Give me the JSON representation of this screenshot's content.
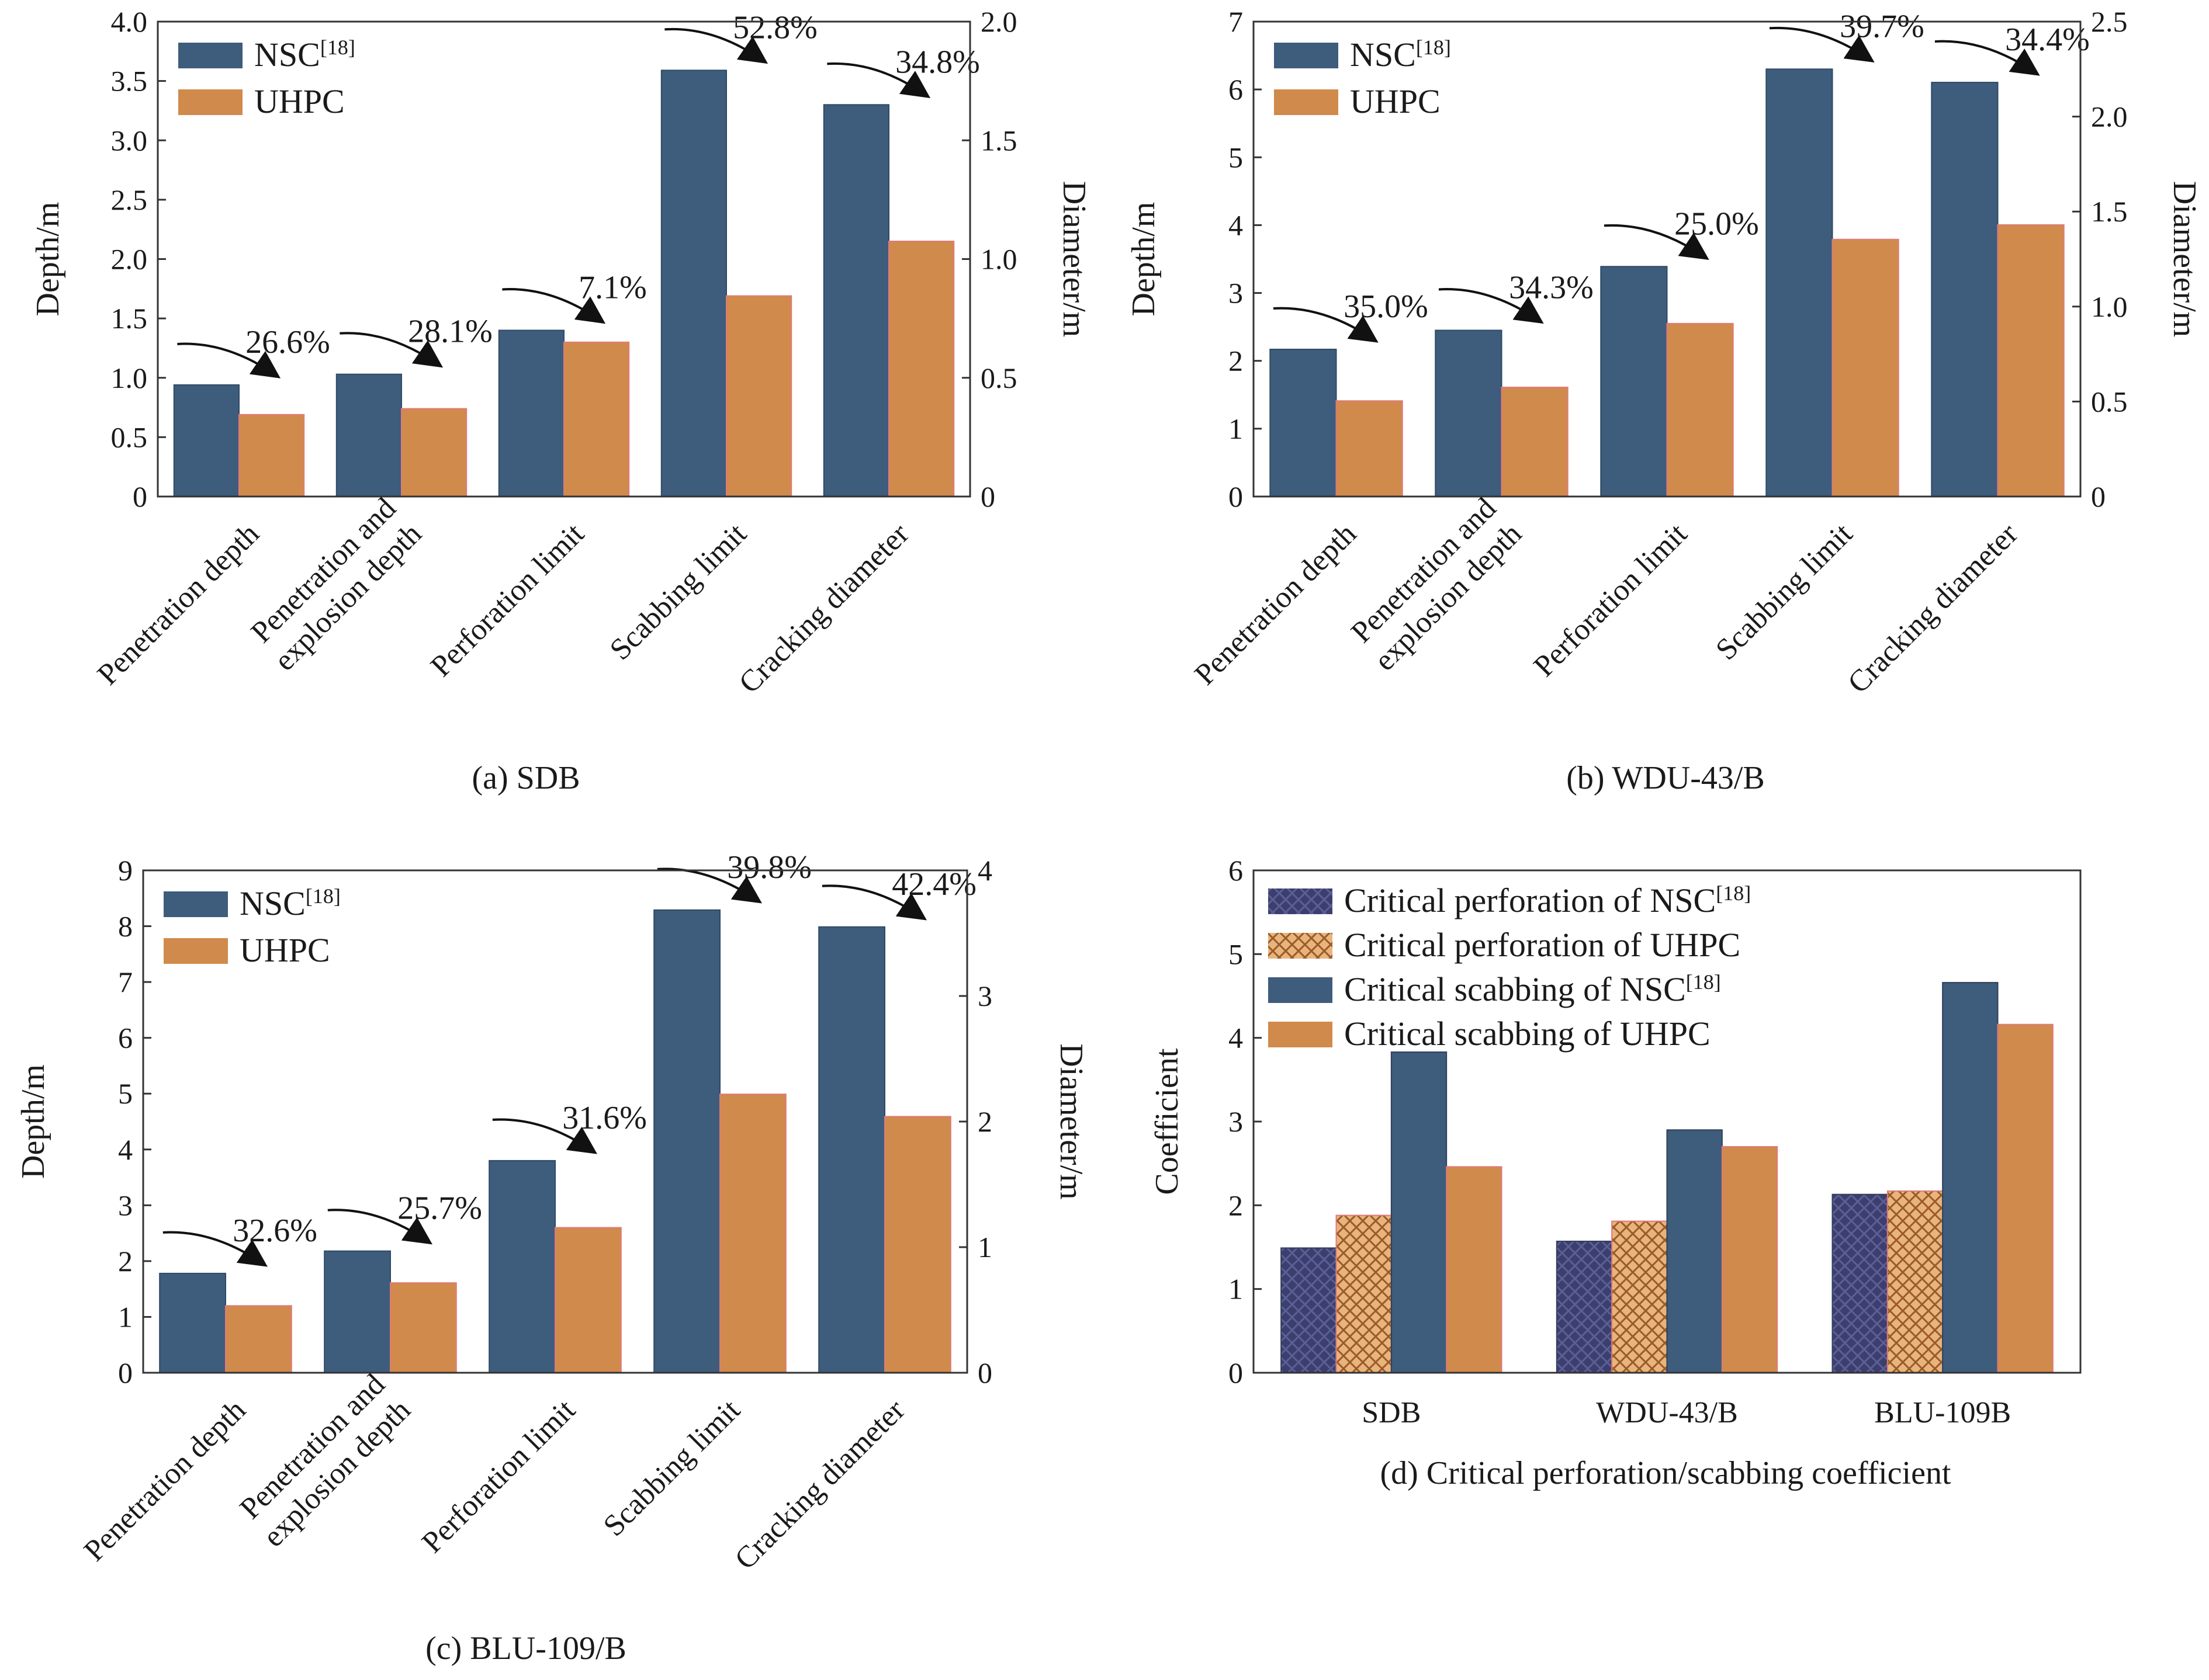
{
  "chart_data": [
    {
      "id": "a",
      "type": "bar",
      "caption": "(a) SDB",
      "categories": [
        "Penetration depth",
        "Penetration and explosion depth",
        "Perforation limit",
        "Scabbing limit",
        "Cracking diameter"
      ],
      "category_lines": [
        [
          "Penetration depth"
        ],
        [
          "Penetration and",
          "explosion depth"
        ],
        [
          "Perforation limit"
        ],
        [
          "Scabbing limit"
        ],
        [
          "Cracking diameter"
        ]
      ],
      "series": [
        {
          "name": "NSC",
          "name_sup": "[18]",
          "color": "#3e5c7c",
          "values": [
            0.94,
            1.03,
            1.4,
            3.59,
            1.65
          ],
          "axis": [
            "left",
            "left",
            "left",
            "left",
            "right"
          ]
        },
        {
          "name": "UHPC",
          "color": "#d08a4c",
          "values": [
            0.69,
            0.74,
            1.3,
            1.69,
            1.075
          ],
          "axis": [
            "left",
            "left",
            "left",
            "left",
            "right"
          ]
        }
      ],
      "annotations": [
        "26.6%",
        "28.1%",
        "7.1%",
        "52.8%",
        "34.8%"
      ],
      "ylabel": "Depth/m",
      "y2label": "Diameter/m",
      "ylim": [
        0,
        4.0
      ],
      "y2lim": [
        0,
        2.0
      ],
      "yticks": [
        "0",
        "0.5",
        "1.0",
        "1.5",
        "2.0",
        "2.5",
        "3.0",
        "3.5",
        "4.0"
      ],
      "y2ticks": [
        "0",
        "0.5",
        "1.0",
        "1.5",
        "2.0"
      ],
      "legend_position": "top-left"
    },
    {
      "id": "b",
      "type": "bar",
      "caption": "(b) WDU-43/B",
      "categories": [
        "Penetration depth",
        "Penetration and explosion depth",
        "Perforation limit",
        "Scabbing limit",
        "Cracking diameter"
      ],
      "category_lines": [
        [
          "Penetration depth"
        ],
        [
          "Penetration and",
          "explosion depth"
        ],
        [
          "Perforation limit"
        ],
        [
          "Scabbing limit"
        ],
        [
          "Cracking diameter"
        ]
      ],
      "series": [
        {
          "name": "NSC",
          "name_sup": "[18]",
          "color": "#3e5c7c",
          "values": [
            2.17,
            2.45,
            3.39,
            6.3,
            2.18
          ],
          "axis": [
            "left",
            "left",
            "left",
            "left",
            "right"
          ]
        },
        {
          "name": "UHPC",
          "color": "#d08a4c",
          "values": [
            1.41,
            1.61,
            2.55,
            3.79,
            1.43
          ],
          "axis": [
            "left",
            "left",
            "left",
            "left",
            "right"
          ]
        }
      ],
      "annotations": [
        "35.0%",
        "34.3%",
        "25.0%",
        "39.7%",
        "34.4%"
      ],
      "ylabel": "Depth/m",
      "y2label": "Diameter/m",
      "ylim": [
        0,
        7
      ],
      "y2lim": [
        0,
        2.5
      ],
      "yticks": [
        "0",
        "1",
        "2",
        "3",
        "4",
        "5",
        "6",
        "7"
      ],
      "y2ticks": [
        "0",
        "0.5",
        "1.0",
        "1.5",
        "2.0",
        "2.5"
      ],
      "legend_position": "top-left"
    },
    {
      "id": "c",
      "type": "bar",
      "caption": "(c) BLU-109/B",
      "categories": [
        "Penetration depth",
        "Penetration and explosion depth",
        "Perforation limit",
        "Scabbing limit",
        "Cracking diameter"
      ],
      "category_lines": [
        [
          "Penetration depth"
        ],
        [
          "Penetration and",
          "explosion depth"
        ],
        [
          "Perforation limit"
        ],
        [
          "Scabbing limit"
        ],
        [
          "Cracking diameter"
        ]
      ],
      "series": [
        {
          "name": "NSC",
          "name_sup": "[18]",
          "color": "#3e5c7c",
          "values": [
            1.78,
            2.18,
            3.8,
            8.29,
            3.55
          ],
          "axis": [
            "left",
            "left",
            "left",
            "left",
            "right"
          ]
        },
        {
          "name": "UHPC",
          "color": "#d08a4c",
          "values": [
            1.2,
            1.61,
            2.6,
            4.99,
            2.04
          ],
          "axis": [
            "left",
            "left",
            "left",
            "left",
            "right"
          ]
        }
      ],
      "annotations": [
        "32.6%",
        "25.7%",
        "31.6%",
        "39.8%",
        "42.4%"
      ],
      "ylabel": "Depth/m",
      "y2label": "Diameter/m",
      "ylim": [
        0,
        9
      ],
      "y2lim": [
        0,
        4
      ],
      "yticks": [
        "0",
        "1",
        "2",
        "3",
        "4",
        "5",
        "6",
        "7",
        "8",
        "9"
      ],
      "y2ticks": [
        "0",
        "1",
        "2",
        "3",
        "4"
      ],
      "legend_position": "top-left"
    },
    {
      "id": "d",
      "type": "bar",
      "caption": "(d) Critical perforation/scabbing coefficient",
      "categories": [
        "SDB",
        "WDU-43/B",
        "BLU-109B"
      ],
      "series": [
        {
          "name": "Critical perforation of NSC",
          "name_sup": "[18]",
          "color": "#3c3f6e",
          "pattern": "hatch",
          "values": [
            1.49,
            1.57,
            2.13
          ]
        },
        {
          "name": "Critical perforation of UHPC",
          "color": "#d08a4c",
          "pattern": "hatch",
          "values": [
            1.88,
            1.81,
            2.17
          ]
        },
        {
          "name": "Critical scabbing of NSC",
          "name_sup": "[18]",
          "color": "#3e5c7c",
          "values": [
            3.83,
            2.9,
            4.66
          ]
        },
        {
          "name": "Critical scabbing of UHPC",
          "color": "#d08a4c",
          "values": [
            2.46,
            2.7,
            4.16
          ]
        }
      ],
      "ylabel": "Coefficient",
      "ylim": [
        0,
        6
      ],
      "yticks": [
        "0",
        "1",
        "2",
        "3",
        "4",
        "5",
        "6"
      ],
      "legend_position": "top-left"
    }
  ]
}
